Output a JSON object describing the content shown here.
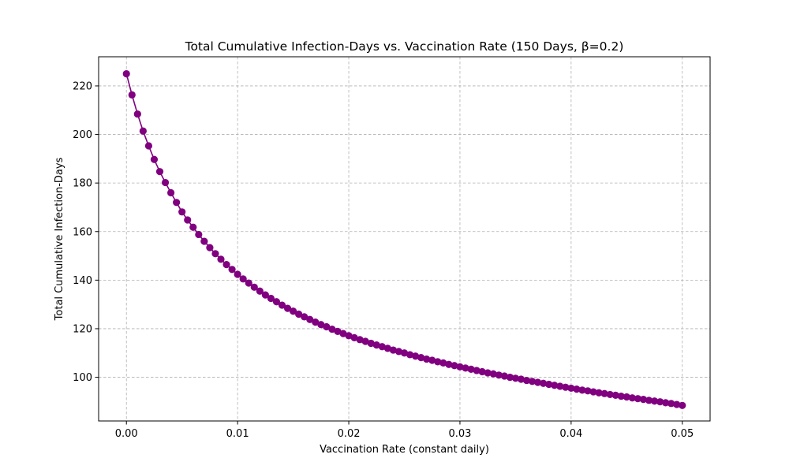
{
  "chart_data": {
    "type": "line",
    "title": "Total Cumulative Infection-Days vs. Vaccination Rate (150 Days, β=0.2)",
    "xlabel": "Vaccination Rate (constant daily)",
    "ylabel": "Total Cumulative Infection-Days",
    "xlim": [
      -0.0025,
      0.0525
    ],
    "ylim": [
      82,
      232
    ],
    "xticks": [
      0.0,
      0.01,
      0.02,
      0.03,
      0.04,
      0.05
    ],
    "xtick_labels": [
      "0.00",
      "0.01",
      "0.02",
      "0.03",
      "0.04",
      "0.05"
    ],
    "yticks": [
      100,
      120,
      140,
      160,
      180,
      200,
      220
    ],
    "ytick_labels": [
      "100",
      "120",
      "140",
      "160",
      "180",
      "200",
      "220"
    ],
    "grid": true,
    "grid_style": "dashed",
    "marker": "circle",
    "color": "#800080",
    "series": [
      {
        "name": "",
        "x": [
          0.0,
          0.0005,
          0.001,
          0.0015,
          0.002,
          0.0025,
          0.003,
          0.0035,
          0.004,
          0.0045,
          0.005,
          0.0055,
          0.006,
          0.0065,
          0.007,
          0.0075,
          0.008,
          0.0085,
          0.009,
          0.0095,
          0.01,
          0.0105,
          0.011,
          0.0115,
          0.012,
          0.0125,
          0.013,
          0.0135,
          0.014,
          0.0145,
          0.015,
          0.0155,
          0.016,
          0.0165,
          0.017,
          0.0175,
          0.018,
          0.0185,
          0.019,
          0.0195,
          0.02,
          0.0205,
          0.021,
          0.0215,
          0.022,
          0.0225,
          0.023,
          0.0235,
          0.024,
          0.0245,
          0.025,
          0.0255,
          0.026,
          0.0265,
          0.027,
          0.0275,
          0.028,
          0.0285,
          0.029,
          0.0295,
          0.03,
          0.0305,
          0.031,
          0.0315,
          0.032,
          0.0325,
          0.033,
          0.0335,
          0.034,
          0.0345,
          0.035,
          0.0355,
          0.036,
          0.0365,
          0.037,
          0.0375,
          0.038,
          0.0385,
          0.039,
          0.0395,
          0.04,
          0.0405,
          0.041,
          0.0415,
          0.042,
          0.0425,
          0.043,
          0.0435,
          0.044,
          0.0445,
          0.045,
          0.0455,
          0.046,
          0.0465,
          0.047,
          0.0475,
          0.048,
          0.0485,
          0.049,
          0.0495,
          0.05
        ],
        "y": [
          225.0,
          216.3,
          208.4,
          201.4,
          195.3,
          189.7,
          184.7,
          180.2,
          176.0,
          172.0,
          168.1,
          164.8,
          161.8,
          158.8,
          156.0,
          153.4,
          150.9,
          148.6,
          146.4,
          144.4,
          142.4,
          140.5,
          138.8,
          137.1,
          135.5,
          133.9,
          132.5,
          131.1,
          129.7,
          128.4,
          127.2,
          126.0,
          124.9,
          123.8,
          122.7,
          121.7,
          120.8,
          119.8,
          118.9,
          118.0,
          117.1,
          116.3,
          115.5,
          114.8,
          114.0,
          113.3,
          112.6,
          111.9,
          111.2,
          110.6,
          110.0,
          109.3,
          108.7,
          108.1,
          107.5,
          107.0,
          106.4,
          105.9,
          105.3,
          104.8,
          104.3,
          103.8,
          103.3,
          102.8,
          102.3,
          101.8,
          101.4,
          100.9,
          100.5,
          100.0,
          99.6,
          99.2,
          98.7,
          98.3,
          97.9,
          97.5,
          97.1,
          96.7,
          96.3,
          95.9,
          95.5,
          95.1,
          94.7,
          94.4,
          94.0,
          93.6,
          93.3,
          92.9,
          92.6,
          92.2,
          91.9,
          91.5,
          91.2,
          90.9,
          90.5,
          90.2,
          89.9,
          89.5,
          89.2,
          88.8,
          88.4
        ]
      }
    ]
  }
}
